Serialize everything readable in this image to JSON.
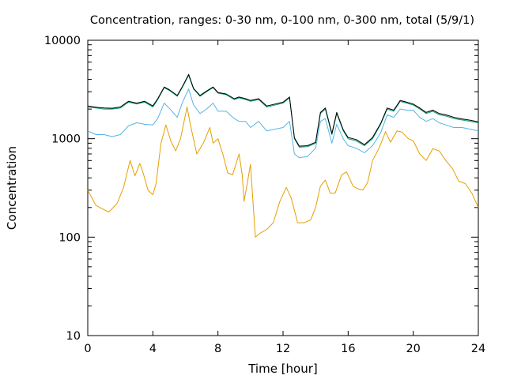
{
  "chart_data": {
    "type": "line",
    "title": "Concentration, ranges: 0-30 nm, 0-100 nm, 0-300 nm, total (5/9/1)",
    "xlabel": "Time [hour]",
    "ylabel": "Concentration",
    "xlim": [
      0,
      24
    ],
    "ylim": [
      10,
      10000
    ],
    "yscale": "log",
    "grid": false,
    "legend": "none",
    "xticks": [
      0,
      4,
      8,
      12,
      16,
      20,
      24
    ],
    "xtick_labels": [
      "0",
      "4",
      "8",
      "12",
      "16",
      "20",
      "24"
    ],
    "yticks": [
      10,
      100,
      1000,
      10000
    ],
    "ytick_labels": [
      "10",
      "100",
      "1000",
      "10000"
    ],
    "series": [
      {
        "color": "#e69f00",
        "x": [
          0,
          0.5,
          1,
          1.3,
          1.8,
          2.2,
          2.6,
          2.9,
          3.2,
          3.4,
          3.7,
          4,
          4.2,
          4.5,
          4.8,
          5.1,
          5.4,
          5.7,
          6.1,
          6.3,
          6.7,
          7.1,
          7.5,
          7.7,
          8,
          8.3,
          8.6,
          8.9,
          9.3,
          9.5,
          9.6,
          9.8,
          10,
          10.3,
          10.6,
          11,
          11.4,
          11.8,
          12.2,
          12.5,
          12.9,
          13.3,
          13.7,
          14,
          14.3,
          14.6,
          14.9,
          15.2,
          15.6,
          15.9,
          16.3,
          16.6,
          16.9,
          17.2,
          17.5,
          17.9,
          18.3,
          18.6,
          19,
          19.3,
          19.7,
          20,
          20.4,
          20.8,
          21.2,
          21.6,
          22,
          22.4,
          22.8,
          23.2,
          23.6,
          24
        ],
        "y": [
          300,
          210,
          190,
          180,
          220,
          320,
          600,
          420,
          560,
          450,
          300,
          270,
          350,
          900,
          1380,
          950,
          750,
          1000,
          2100,
          1400,
          700,
          900,
          1300,
          900,
          1000,
          700,
          450,
          430,
          700,
          420,
          230,
          350,
          550,
          100,
          110,
          120,
          140,
          230,
          320,
          250,
          140,
          140,
          150,
          200,
          330,
          380,
          280,
          280,
          430,
          460,
          330,
          310,
          300,
          360,
          600,
          800,
          1180,
          920,
          1200,
          1170,
          1000,
          950,
          700,
          600,
          790,
          750,
          600,
          500,
          370,
          350,
          280,
          200
        ]
      },
      {
        "color": "#56b4e9",
        "x": [
          0,
          0.5,
          1,
          1.5,
          2,
          2.5,
          3,
          3.5,
          4,
          4.3,
          4.7,
          5,
          5.5,
          5.8,
          6.2,
          6.5,
          6.9,
          7.3,
          7.7,
          8,
          8.5,
          9,
          9.3,
          9.7,
          10,
          10.5,
          11,
          11.5,
          12,
          12.4,
          12.7,
          13,
          13.5,
          14,
          14.3,
          14.6,
          15,
          15.3,
          15.7,
          16,
          16.5,
          17,
          17.5,
          18,
          18.4,
          18.8,
          19.2,
          19.6,
          20,
          20.4,
          20.8,
          21.2,
          21.6,
          22,
          22.5,
          23,
          23.5,
          24
        ],
        "y": [
          1200,
          1100,
          1100,
          1050,
          1100,
          1350,
          1450,
          1400,
          1380,
          1600,
          2300,
          2050,
          1650,
          2300,
          3200,
          2200,
          1800,
          2000,
          2300,
          1900,
          1900,
          1600,
          1500,
          1500,
          1300,
          1500,
          1200,
          1250,
          1300,
          1500,
          700,
          640,
          660,
          800,
          1500,
          1600,
          900,
          1400,
          1000,
          850,
          800,
          720,
          850,
          1150,
          1750,
          1650,
          2000,
          1950,
          1950,
          1650,
          1500,
          1600,
          1450,
          1380,
          1300,
          1300,
          1250,
          1200
        ]
      },
      {
        "color": "#009e73",
        "x": [
          0,
          0.5,
          1,
          1.5,
          2,
          2.5,
          3,
          3.5,
          4,
          4.3,
          4.7,
          5,
          5.5,
          5.8,
          6.2,
          6.5,
          6.9,
          7.3,
          7.7,
          8,
          8.5,
          9,
          9.3,
          9.7,
          10,
          10.5,
          11,
          11.5,
          12,
          12.4,
          12.7,
          13,
          13.5,
          14,
          14.3,
          14.6,
          15,
          15.3,
          15.7,
          16,
          16.5,
          17,
          17.5,
          18,
          18.4,
          18.8,
          19.2,
          19.6,
          20,
          20.4,
          20.8,
          21.2,
          21.6,
          22,
          22.5,
          23,
          23.5,
          24
        ],
        "y": [
          2100,
          2050,
          2000,
          2000,
          2050,
          2350,
          2250,
          2350,
          2100,
          2500,
          3300,
          3100,
          2700,
          3300,
          4400,
          3200,
          2700,
          3000,
          3300,
          2900,
          2800,
          2500,
          2600,
          2500,
          2400,
          2500,
          2100,
          2200,
          2300,
          2600,
          1000,
          820,
          830,
          900,
          1800,
          2000,
          1100,
          1800,
          1200,
          1000,
          950,
          850,
          1000,
          1400,
          2000,
          1900,
          2400,
          2300,
          2200,
          2000,
          1800,
          1900,
          1750,
          1700,
          1600,
          1550,
          1500,
          1450
        ]
      },
      {
        "color": "#000000",
        "x": [
          0,
          0.5,
          1,
          1.5,
          2,
          2.5,
          3,
          3.5,
          4,
          4.3,
          4.7,
          5,
          5.5,
          5.8,
          6.2,
          6.5,
          6.9,
          7.3,
          7.7,
          8,
          8.5,
          9,
          9.3,
          9.7,
          10,
          10.5,
          11,
          11.5,
          12,
          12.4,
          12.7,
          13,
          13.5,
          14,
          14.3,
          14.6,
          15,
          15.3,
          15.7,
          16,
          16.5,
          17,
          17.5,
          18,
          18.4,
          18.8,
          19.2,
          19.6,
          20,
          20.4,
          20.8,
          21.2,
          21.6,
          22,
          22.5,
          23,
          23.5,
          24
        ],
        "y": [
          2150,
          2090,
          2050,
          2040,
          2100,
          2400,
          2300,
          2400,
          2150,
          2550,
          3350,
          3150,
          2750,
          3350,
          4500,
          3250,
          2750,
          3050,
          3350,
          2950,
          2850,
          2550,
          2650,
          2550,
          2450,
          2550,
          2150,
          2250,
          2350,
          2650,
          1020,
          840,
          850,
          920,
          1850,
          2050,
          1130,
          1850,
          1230,
          1030,
          980,
          870,
          1030,
          1430,
          2050,
          1950,
          2450,
          2350,
          2250,
          2050,
          1850,
          1950,
          1800,
          1750,
          1650,
          1590,
          1540,
          1480
        ]
      }
    ]
  }
}
